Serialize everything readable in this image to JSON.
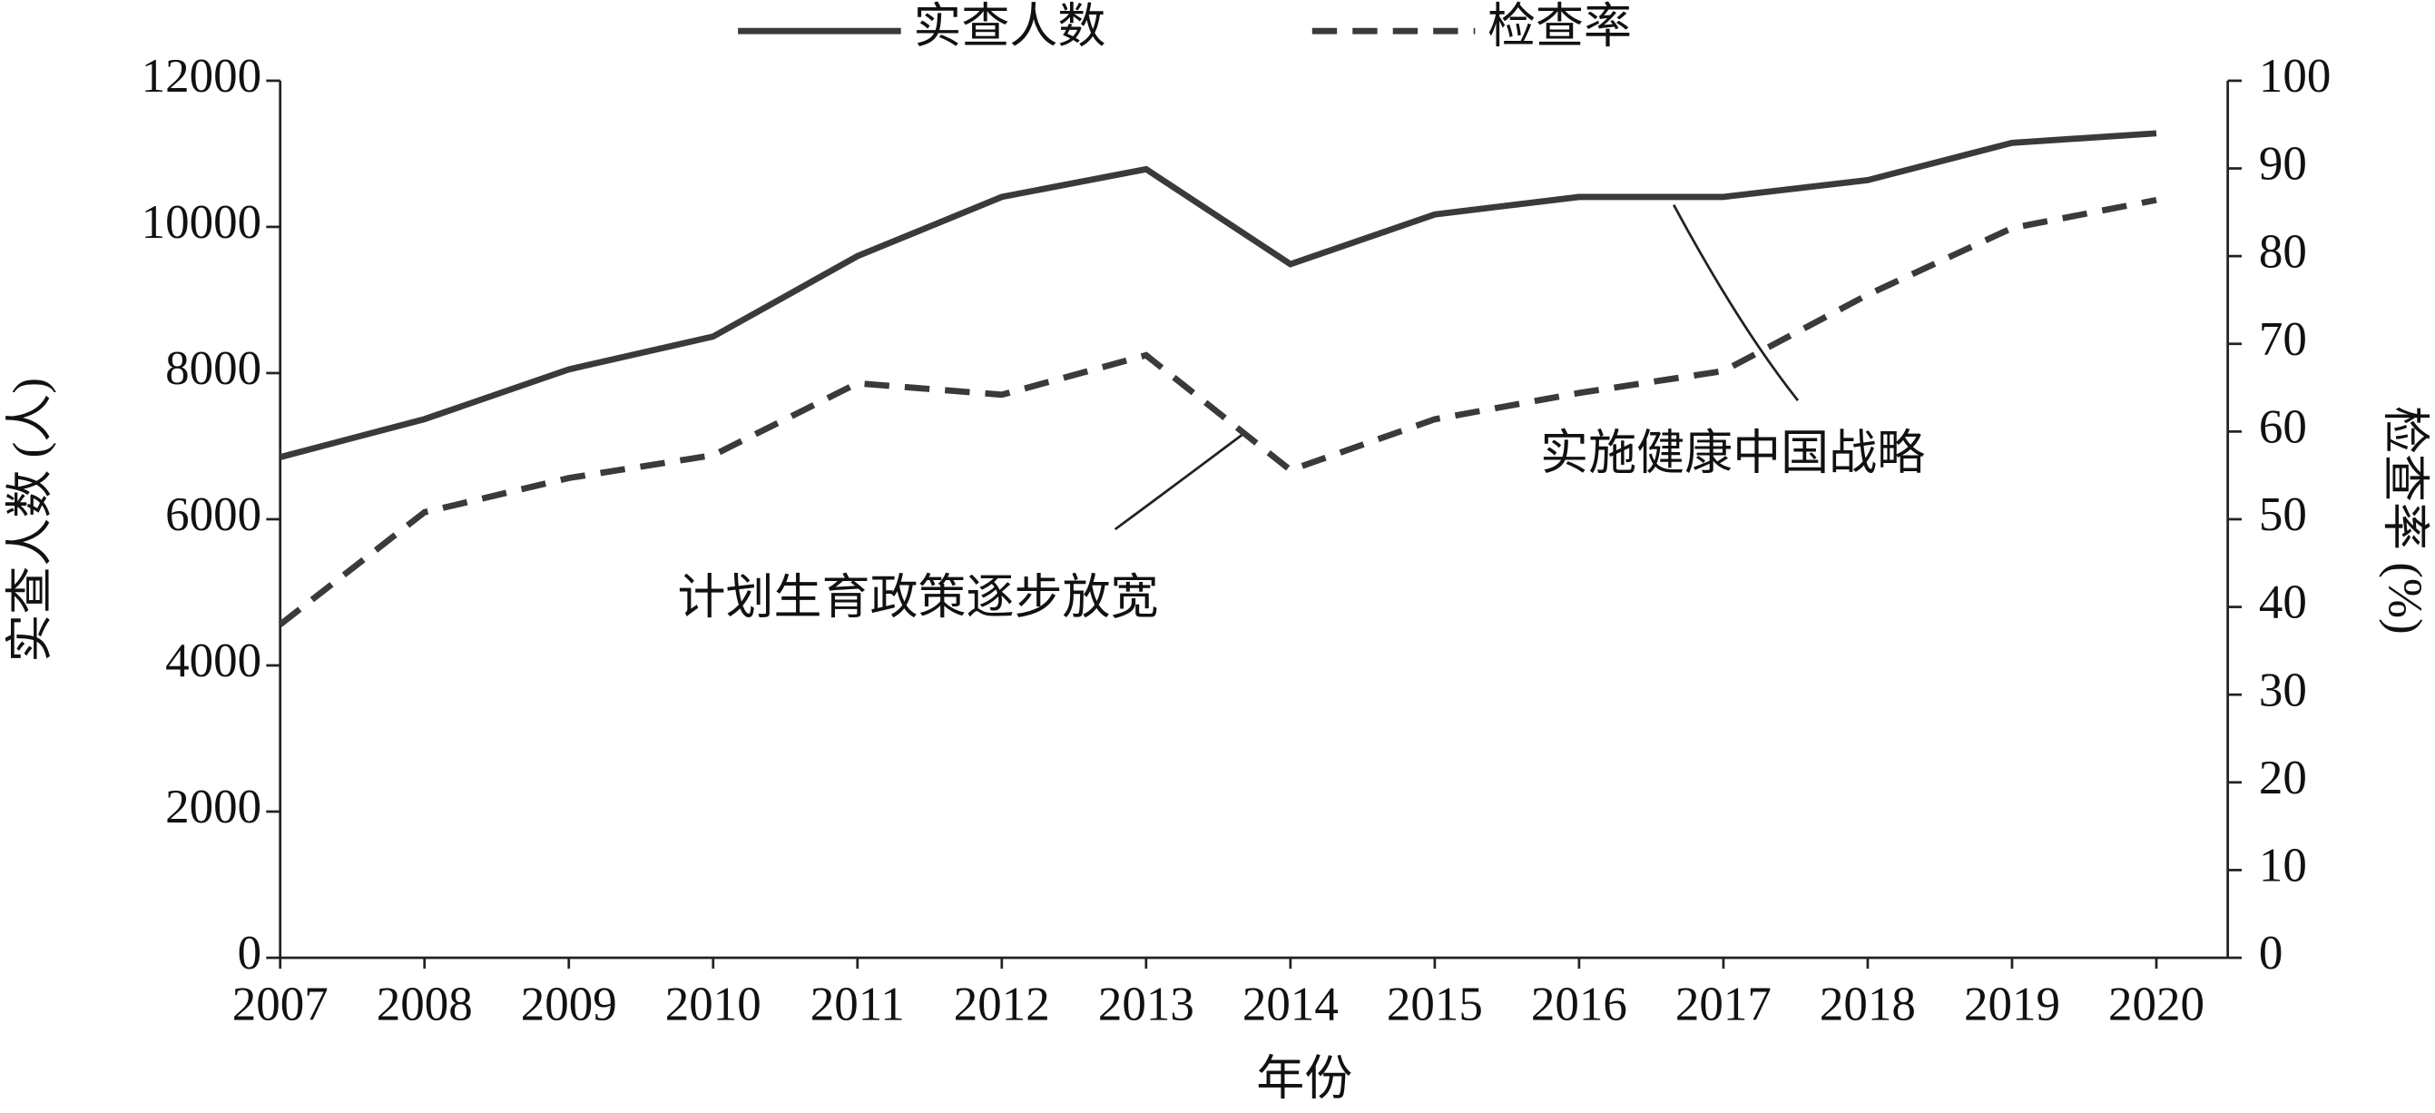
{
  "chart_data": {
    "type": "line",
    "x_label": "年份",
    "y_label": "实查人数 (人)",
    "y2_label": "检查率 (%)",
    "categories": [
      "2007",
      "2008",
      "2009",
      "2010",
      "2011",
      "2012",
      "2013",
      "2014",
      "2015",
      "2016",
      "2017",
      "2018",
      "2019",
      "2020"
    ],
    "series": [
      {
        "name": "实查人数",
        "color": "#3a3a3a",
        "dash": false,
        "values": [
          6850,
          7370,
          8050,
          8500,
          9600,
          10410,
          10790,
          9490,
          10170,
          10410,
          10410,
          10640,
          11150,
          11280
        ]
      },
      {
        "name": "检查率",
        "color": "#3a3a3a",
        "dash": true,
        "axis": "y2",
        "values": [
          38,
          50.8,
          54.7,
          57.3,
          65.5,
          64.2,
          68.7,
          55.6,
          61.4,
          64.4,
          66.9,
          75.6,
          83.2,
          86.4
        ]
      }
    ],
    "ylim": [
      0,
      12000
    ],
    "yticks": [
      0,
      2000,
      4000,
      6000,
      8000,
      10000,
      12000
    ],
    "y2lim": [
      0,
      100
    ],
    "y2ticks": [
      0,
      10,
      20,
      30,
      40,
      50,
      60,
      70,
      80,
      90,
      100
    ],
    "annotations": [
      "计划生育政策逐步放宽",
      "实施健康中国战略"
    ]
  }
}
